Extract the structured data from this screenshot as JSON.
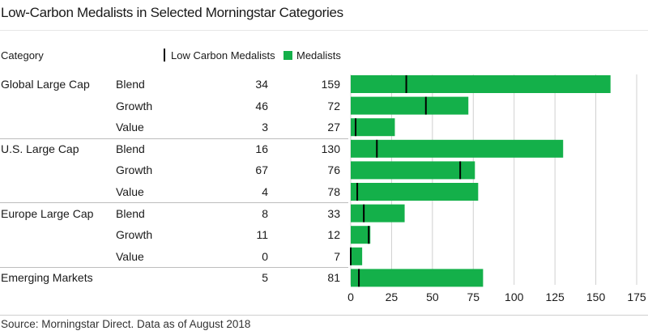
{
  "title": "Low-Carbon Medalists in Selected Morningstar Categories",
  "header": {
    "category_label": "Category",
    "legend_low_carbon": "Low Carbon Medalists",
    "legend_medalists": "Medalists"
  },
  "colors": {
    "medalists": "#14b04a",
    "low_carbon": "#000000"
  },
  "source": "Source: Morningstar Direct. Data as of August 2018",
  "chart_data": {
    "type": "bar",
    "orientation": "horizontal",
    "rows": [
      {
        "group": "Global Large Cap",
        "style": "Blend",
        "low_carbon": 34,
        "medalists": 159
      },
      {
        "group": "",
        "style": "Growth",
        "low_carbon": 46,
        "medalists": 72
      },
      {
        "group": "",
        "style": "Value",
        "low_carbon": 3,
        "medalists": 27
      },
      {
        "group": "U.S. Large Cap",
        "style": "Blend",
        "low_carbon": 16,
        "medalists": 130
      },
      {
        "group": "",
        "style": "Growth",
        "low_carbon": 67,
        "medalists": 76
      },
      {
        "group": "",
        "style": "Value",
        "low_carbon": 4,
        "medalists": 78
      },
      {
        "group": "Europe Large Cap",
        "style": "Blend",
        "low_carbon": 8,
        "medalists": 33
      },
      {
        "group": "",
        "style": "Growth",
        "low_carbon": 11,
        "medalists": 12
      },
      {
        "group": "",
        "style": "Value",
        "low_carbon": 0,
        "medalists": 7
      },
      {
        "group": "Emerging Markets",
        "style": "",
        "low_carbon": 5,
        "medalists": 81
      }
    ],
    "series": [
      {
        "name": "Low Carbon Medalists",
        "key": "low_carbon"
      },
      {
        "name": "Medalists",
        "key": "medalists"
      }
    ],
    "xlim": [
      0,
      175
    ],
    "xticks": [
      0,
      25,
      50,
      75,
      100,
      125,
      150,
      175
    ],
    "grid": true,
    "legend": "top"
  }
}
